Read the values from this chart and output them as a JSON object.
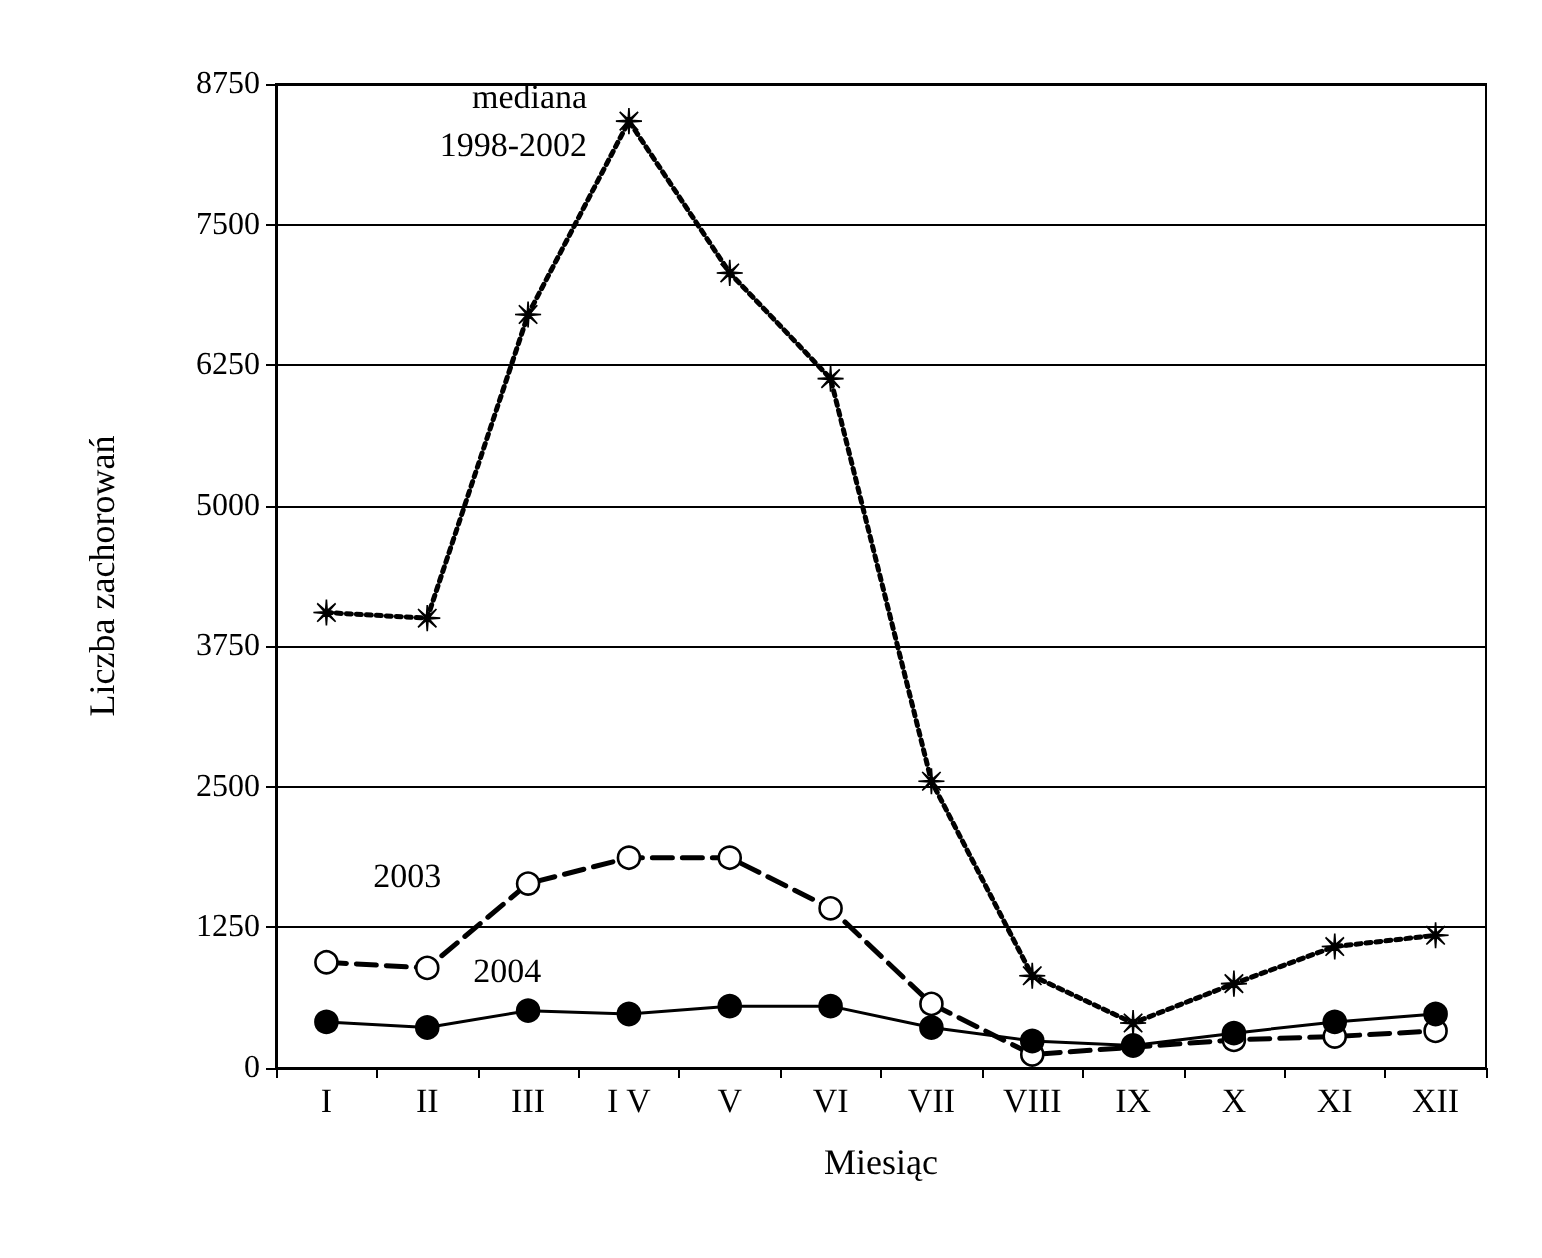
{
  "chart_data": {
    "type": "line",
    "xlabel": "Miesiąc",
    "ylabel": "Liczba zachorowań",
    "categories": [
      "I",
      "II",
      "III",
      "I V",
      "V",
      "VI",
      "VII",
      "VIII",
      "IX",
      "X",
      "XI",
      "XII"
    ],
    "ylim": [
      0,
      8750
    ],
    "yticks": [
      0,
      1250,
      2500,
      3750,
      5000,
      6250,
      7500,
      8750
    ],
    "grid": "y",
    "legend": false,
    "series": [
      {
        "name": "mediana 1998-2002",
        "color": "#000000",
        "marker": "star",
        "line_style": "dotted",
        "values": [
          4050,
          4000,
          6700,
          8420,
          7070,
          6130,
          2550,
          820,
          400,
          750,
          1080,
          1180
        ]
      },
      {
        "name": "2003",
        "color": "#000000",
        "marker": "circle",
        "line_style": "dashed",
        "values": [
          940,
          890,
          1640,
          1870,
          1870,
          1420,
          570,
          120,
          null,
          250,
          280,
          330
        ]
      },
      {
        "name": "2004",
        "color": "#000000",
        "marker": "circle",
        "line_style": "solid",
        "values": [
          410,
          360,
          510,
          480,
          550,
          550,
          360,
          240,
          200,
          310,
          410,
          480
        ]
      }
    ]
  }
}
